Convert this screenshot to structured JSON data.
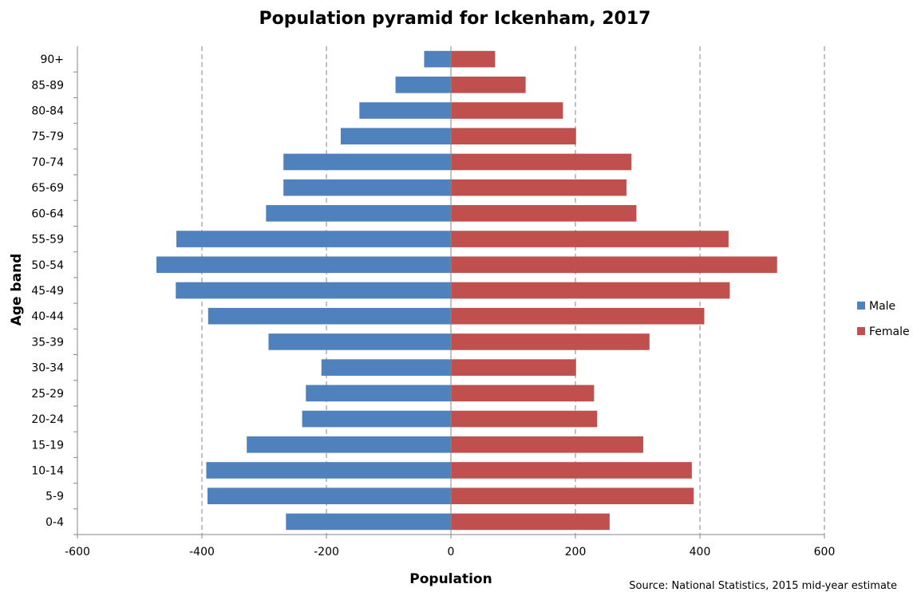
{
  "chart_data": {
    "type": "bar",
    "orientation": "horizontal",
    "title": "Population pyramid for Ickenham, 2017",
    "xlabel": "Population",
    "ylabel": "Age band",
    "xlim": [
      -600,
      600
    ],
    "xticks": [
      "-600",
      "-400",
      "-200",
      "0",
      "200",
      "400",
      "600"
    ],
    "xtick_values": [
      -600,
      -400,
      -200,
      0,
      200,
      400,
      600
    ],
    "grid": "vertical dashed",
    "legend_position": "right",
    "categories": [
      "0-4",
      "5-9",
      "10-14",
      "15-19",
      "20-24",
      "25-29",
      "30-34",
      "35-39",
      "40-44",
      "45-49",
      "50-54",
      "55-59",
      "60-64",
      "65-69",
      "70-74",
      "75-79",
      "80-84",
      "85-89",
      "90+"
    ],
    "series": [
      {
        "name": "Male",
        "color": "#4f81bd",
        "values": [
          -265,
          -391,
          -393,
          -328,
          -239,
          -233,
          -208,
          -293,
          -390,
          -442,
          -473,
          -441,
          -297,
          -269,
          -269,
          -177,
          -147,
          -89,
          -43
        ]
      },
      {
        "name": "Female",
        "color": "#c0504d",
        "values": [
          255,
          390,
          387,
          309,
          235,
          230,
          201,
          319,
          407,
          448,
          524,
          446,
          298,
          282,
          290,
          201,
          180,
          120,
          71
        ]
      }
    ],
    "source": "Source:  National Statistics, 2015 mid-year estimate"
  }
}
